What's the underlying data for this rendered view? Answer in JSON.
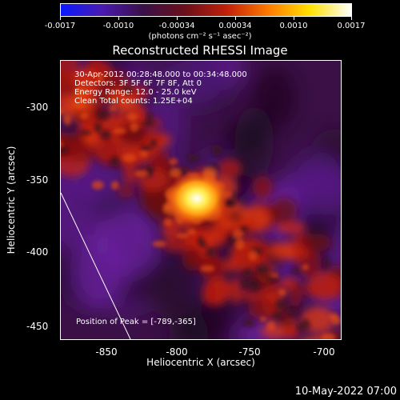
{
  "colorbar": {
    "tick_labels": [
      "-0.0017",
      "-0.0010",
      "-0.00034",
      "0.00034",
      "0.0010",
      "0.0017"
    ],
    "units": "(photons cm⁻² s⁻¹ asec⁻²)",
    "colors": [
      "#0a1aff",
      "#4a1ab0",
      "#3a1046",
      "#6b0f1a",
      "#c0200a",
      "#ff7a00",
      "#ffe000",
      "#ffffff"
    ]
  },
  "title": "Reconstructed RHESSI Image",
  "info": {
    "time_range": "30-Apr-2012 00:28:48.000 to 00:34:48.000",
    "detectors": "Detectors: 3F 5F 6F 7F 8F, Att 0",
    "energy": "Energy Range: 12.0 - 25.0 keV",
    "clean": "Clean     Total counts: 1.25E+04"
  },
  "peak_label": "Position of Peak = [-789,-365]",
  "chart_data": {
    "type": "heatmap",
    "title": "Reconstructed RHESSI Image",
    "xlabel": "Heliocentric X (arcsec)",
    "ylabel": "Heliocentric Y (arcsec)",
    "xlim": [
      -878,
      -692
    ],
    "ylim": [
      -462,
      -278
    ],
    "xticks": [
      "-850",
      "-800",
      "-750",
      "-700"
    ],
    "yticks": [
      "-300",
      "-350",
      "-400",
      "-450"
    ],
    "peak": {
      "x": -789,
      "y": -365
    },
    "colorbar_range": [
      -0.0017,
      0.0017
    ]
  },
  "footer_date": "10-May-2022 07:00"
}
